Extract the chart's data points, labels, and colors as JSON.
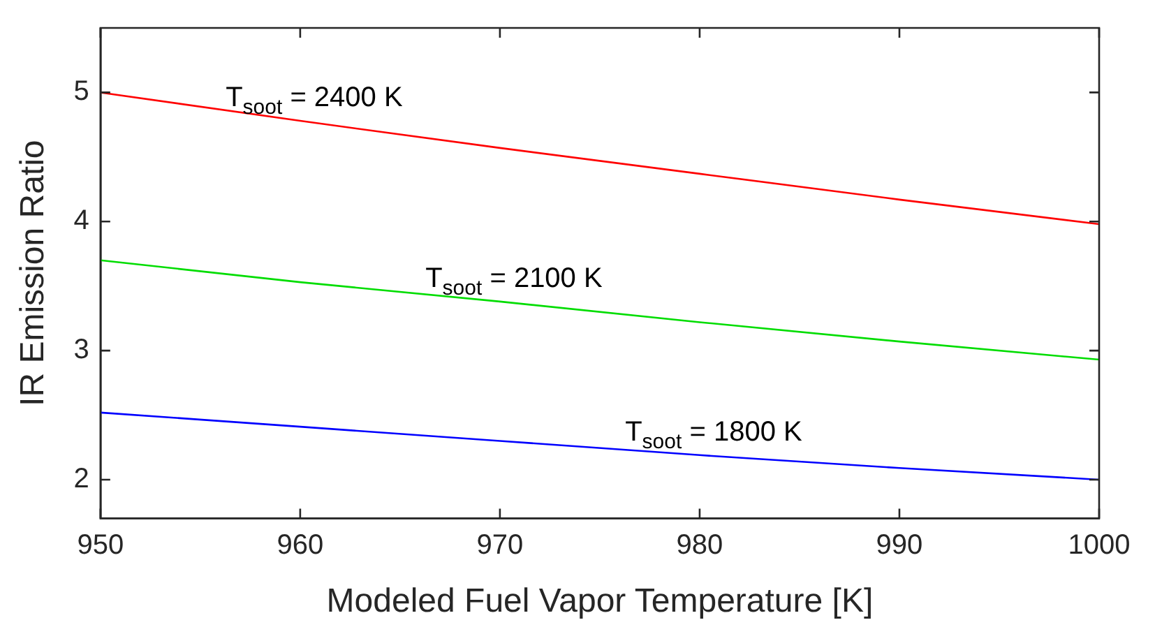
{
  "chart_data": {
    "type": "line",
    "xlabel": "Modeled Fuel Vapor Temperature [K]",
    "ylabel": "IR Emission Ratio",
    "x": [
      950,
      960,
      970,
      980,
      990,
      1000
    ],
    "series": [
      {
        "name": "T$_{soot}$ = 2400 K",
        "color": "#ff0000",
        "values": [
          5.0,
          4.78,
          4.57,
          4.37,
          4.17,
          3.98
        ]
      },
      {
        "name": "T$_{soot}$ = 2100 K",
        "color": "#00dd00",
        "values": [
          3.7,
          3.53,
          3.38,
          3.22,
          3.07,
          2.93
        ]
      },
      {
        "name": "T$_{soot}$ = 1800 K",
        "color": "#0000ff",
        "values": [
          2.52,
          2.41,
          2.3,
          2.19,
          2.09,
          2.0
        ]
      }
    ],
    "xlim": [
      950,
      1000
    ],
    "xticks": [
      950,
      960,
      970,
      980,
      990,
      1000
    ],
    "ylim": [
      1.7,
      5.5
    ],
    "yticks": [
      2,
      3,
      4,
      5
    ],
    "grid": false,
    "legend": false,
    "marker": "none",
    "line_style": "solid"
  }
}
